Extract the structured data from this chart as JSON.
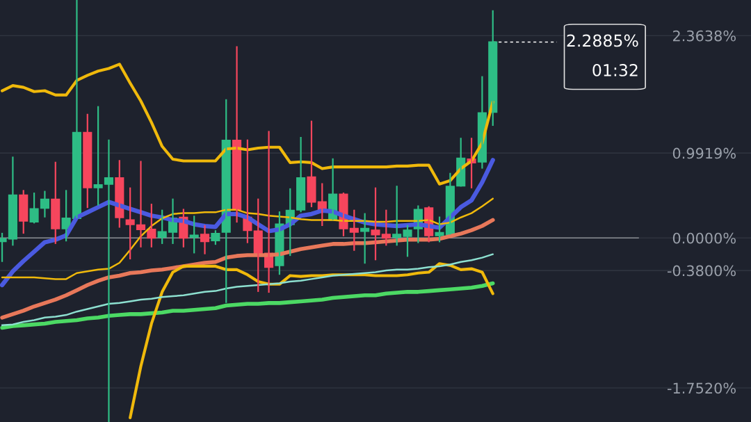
{
  "chart_data": {
    "type": "candlestick",
    "categories": [
      null,
      null,
      null,
      null,
      null,
      null,
      null,
      null,
      null,
      null,
      null,
      null,
      null,
      null,
      null,
      null,
      null,
      null,
      null,
      null,
      null,
      null,
      null,
      null,
      null,
      null,
      null,
      null,
      null,
      null,
      null,
      null,
      null,
      null,
      null,
      null,
      null,
      null,
      null,
      null,
      null,
      null,
      null,
      null,
      null,
      null,
      null
    ],
    "ohlc": [
      [
        -0.04,
        0.06,
        -0.28,
        -0.01
      ],
      [
        -0.01,
        0.95,
        -0.09,
        0.5
      ],
      [
        0.5,
        0.56,
        0.05,
        0.2
      ],
      [
        0.19,
        0.53,
        0.17,
        0.34
      ],
      [
        0.35,
        0.55,
        0.24,
        0.45
      ],
      [
        0.45,
        0.89,
        -0.07,
        0.11
      ],
      [
        0.11,
        0.56,
        -0.04,
        0.23
      ],
      [
        0.23,
        2.78,
        0.23,
        1.23
      ],
      [
        1.23,
        1.45,
        0.35,
        0.59
      ],
      [
        0.59,
        1.54,
        0.38,
        0.62
      ],
      [
        0.63,
        1.15,
        -2.15,
        0.7
      ],
      [
        0.7,
        0.91,
        0.12,
        0.24
      ],
      [
        0.21,
        0.59,
        -0.25,
        0.16
      ],
      [
        0.15,
        0.9,
        -0.11,
        0.1
      ],
      [
        0.1,
        0.4,
        -0.11,
        0.0
      ],
      [
        0.01,
        0.33,
        -0.07,
        0.07
      ],
      [
        0.07,
        0.46,
        -0.07,
        0.23
      ],
      [
        0.24,
        0.34,
        -0.11,
        0.0
      ],
      [
        0.01,
        0.26,
        -0.18,
        0.03
      ],
      [
        0.04,
        0.15,
        -0.19,
        -0.04
      ],
      [
        -0.03,
        0.09,
        -0.08,
        0.05
      ],
      [
        0.07,
        1.62,
        -0.76,
        1.14
      ],
      [
        1.14,
        2.24,
        0.18,
        0.33
      ],
      [
        0.24,
        1.15,
        -0.06,
        0.09
      ],
      [
        0.08,
        0.46,
        -0.63,
        -0.18
      ],
      [
        -0.18,
        1.25,
        -0.64,
        -0.34
      ],
      [
        -0.32,
        0.31,
        -0.43,
        0.16
      ],
      [
        0.16,
        0.58,
        -0.21,
        0.32
      ],
      [
        0.33,
        1.18,
        0.3,
        0.7
      ],
      [
        0.71,
        1.37,
        0.36,
        0.42
      ],
      [
        0.42,
        0.64,
        0.14,
        0.33
      ],
      [
        0.21,
        0.93,
        0.21,
        0.51
      ],
      [
        0.51,
        0.53,
        0.02,
        0.11
      ],
      [
        0.11,
        0.33,
        -0.15,
        0.07
      ],
      [
        0.08,
        0.29,
        -0.3,
        0.11
      ],
      [
        0.09,
        0.59,
        -0.26,
        0.04
      ],
      [
        0.04,
        0.33,
        -0.09,
        0.0
      ],
      [
        0.01,
        0.61,
        -0.09,
        0.04
      ],
      [
        0.02,
        0.15,
        -0.22,
        0.09
      ],
      [
        0.11,
        0.38,
        -0.06,
        0.33
      ],
      [
        0.35,
        0.37,
        -0.05,
        0.03
      ],
      [
        0.03,
        0.25,
        -0.05,
        0.06
      ],
      [
        0.04,
        0.76,
        0.04,
        0.6
      ],
      [
        0.61,
        1.17,
        0.6,
        0.93
      ],
      [
        0.92,
        1.17,
        0.58,
        0.88
      ],
      [
        0.89,
        1.89,
        0.81,
        1.46
      ],
      [
        1.47,
        2.66,
        1.31,
        2.2885
      ]
    ],
    "series": [
      {
        "type": "line",
        "color": "#4cd964",
        "values": [
          -1.05,
          -1.03,
          -1.02,
          -1.01,
          -1.0,
          -0.98,
          -0.97,
          -0.96,
          -0.94,
          -0.93,
          -0.91,
          -0.9,
          -0.89,
          -0.89,
          -0.88,
          -0.87,
          -0.85,
          -0.85,
          -0.84,
          -0.83,
          -0.82,
          -0.79,
          -0.78,
          -0.77,
          -0.77,
          -0.76,
          -0.76,
          -0.75,
          -0.74,
          -0.73,
          -0.72,
          -0.7,
          -0.69,
          -0.68,
          -0.67,
          -0.67,
          -0.65,
          -0.64,
          -0.63,
          -0.63,
          -0.62,
          -0.61,
          -0.6,
          -0.59,
          -0.58,
          -0.56,
          -0.53
        ]
      },
      {
        "type": "line",
        "color": "#8de0d0",
        "values": [
          -1.02,
          -1.01,
          -0.98,
          -0.96,
          -0.93,
          -0.92,
          -0.9,
          -0.86,
          -0.83,
          -0.8,
          -0.77,
          -0.76,
          -0.74,
          -0.72,
          -0.71,
          -0.69,
          -0.68,
          -0.67,
          -0.65,
          -0.63,
          -0.62,
          -0.59,
          -0.57,
          -0.56,
          -0.55,
          -0.54,
          -0.53,
          -0.51,
          -0.5,
          -0.48,
          -0.46,
          -0.44,
          -0.43,
          -0.42,
          -0.41,
          -0.4,
          -0.38,
          -0.37,
          -0.37,
          -0.36,
          -0.34,
          -0.33,
          -0.31,
          -0.28,
          -0.26,
          -0.23,
          -0.19
        ]
      },
      {
        "type": "line",
        "color": "#e8785a",
        "values": [
          -0.93,
          -0.89,
          -0.85,
          -0.8,
          -0.76,
          -0.72,
          -0.67,
          -0.61,
          -0.55,
          -0.5,
          -0.46,
          -0.44,
          -0.41,
          -0.4,
          -0.38,
          -0.37,
          -0.35,
          -0.33,
          -0.31,
          -0.29,
          -0.28,
          -0.23,
          -0.21,
          -0.2,
          -0.2,
          -0.2,
          -0.19,
          -0.16,
          -0.13,
          -0.11,
          -0.09,
          -0.07,
          -0.07,
          -0.06,
          -0.06,
          -0.05,
          -0.04,
          -0.03,
          -0.02,
          -0.02,
          -0.02,
          -0.01,
          0.02,
          0.05,
          0.09,
          0.14,
          0.21
        ]
      },
      {
        "type": "line",
        "color": "#f0b90b",
        "values": [
          -0.46,
          -0.46,
          -0.46,
          -0.46,
          -0.47,
          -0.48,
          -0.48,
          -0.41,
          -0.39,
          -0.37,
          -0.36,
          -0.29,
          -0.14,
          0.02,
          0.14,
          0.23,
          0.28,
          0.29,
          0.29,
          0.3,
          0.3,
          0.33,
          0.33,
          0.29,
          0.28,
          0.26,
          0.25,
          0.24,
          0.22,
          0.21,
          0.21,
          0.21,
          0.2,
          0.2,
          0.2,
          0.19,
          0.19,
          0.2,
          0.2,
          0.2,
          0.21,
          0.16,
          0.18,
          0.24,
          0.29,
          0.37,
          0.46
        ]
      },
      {
        "type": "line",
        "color": "#f0b90b",
        "values": [
          1.72,
          1.78,
          1.76,
          1.71,
          1.72,
          1.67,
          1.67,
          1.84,
          1.9,
          1.95,
          1.98,
          2.03,
          1.81,
          1.6,
          1.35,
          1.07,
          0.92,
          0.9,
          0.9,
          0.9,
          0.9,
          1.04,
          1.05,
          1.03,
          1.05,
          1.06,
          1.06,
          0.88,
          0.89,
          0.88,
          0.81,
          0.83,
          0.83,
          0.83,
          0.83,
          0.83,
          0.83,
          0.84,
          0.84,
          0.85,
          0.85,
          0.63,
          0.67,
          0.81,
          0.9,
          1.11,
          1.59
        ]
      },
      {
        "type": "line",
        "color": "#f0b90b",
        "values": [
          null,
          null,
          null,
          null,
          null,
          null,
          null,
          null,
          null,
          null,
          null,
          null,
          -2.1,
          -1.5,
          -1.0,
          -0.63,
          -0.4,
          -0.33,
          -0.33,
          -0.33,
          -0.33,
          -0.37,
          -0.37,
          -0.43,
          -0.51,
          -0.54,
          -0.54,
          -0.44,
          -0.45,
          -0.44,
          -0.44,
          -0.43,
          -0.43,
          -0.43,
          -0.43,
          -0.44,
          -0.44,
          -0.44,
          -0.43,
          -0.41,
          -0.4,
          -0.3,
          -0.32,
          -0.37,
          -0.36,
          -0.4,
          -0.65
        ]
      },
      {
        "type": "line",
        "color": "#4a5ae0",
        "values": [
          -0.55,
          -0.39,
          -0.27,
          -0.16,
          -0.05,
          -0.02,
          0.03,
          0.24,
          0.3,
          0.36,
          0.42,
          0.38,
          0.34,
          0.3,
          0.26,
          0.24,
          0.21,
          0.2,
          0.16,
          0.14,
          0.13,
          0.28,
          0.28,
          0.24,
          0.16,
          0.08,
          0.1,
          0.16,
          0.26,
          0.28,
          0.32,
          0.31,
          0.26,
          0.22,
          0.18,
          0.16,
          0.15,
          0.14,
          0.15,
          0.16,
          0.14,
          0.12,
          0.24,
          0.36,
          0.44,
          0.65,
          0.91
        ]
      }
    ],
    "ylim": [
      -2.15,
      2.78
    ],
    "yticks": [
      {
        "value": 2.3638,
        "label": "2.3638%"
      },
      {
        "value": 0.9919,
        "label": "0.9919%"
      },
      {
        "value": 0,
        "label": "0.0000%"
      },
      {
        "value": -0.38,
        "label": "-0.3800%"
      },
      {
        "value": -1.752,
        "label": "-1.7520%"
      }
    ],
    "ref_lines": [
      {
        "axis": "y",
        "value": 0,
        "color": "#8a8d94",
        "line_style": "solid"
      },
      {
        "axis": "y",
        "value": 2.2885,
        "label": "2.2885%",
        "color": "#ffffff",
        "line_style": "dashed"
      }
    ],
    "annotations": [
      "01:32"
    ],
    "grid": "y",
    "tick_labels": "y"
  }
}
